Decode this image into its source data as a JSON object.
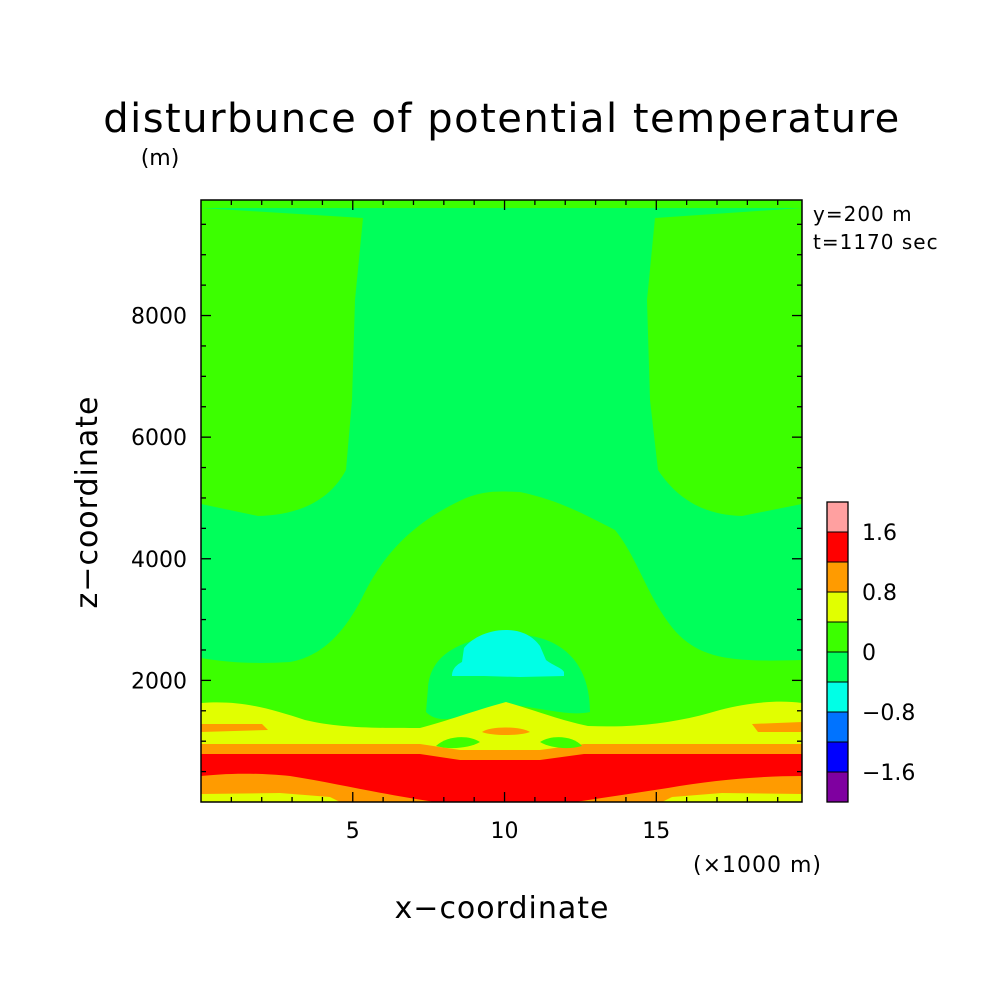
{
  "chart_data": {
    "type": "heatmap",
    "subtype": "filled-contour",
    "title": "disturbunce of potential temperature",
    "ylabel_unit": "(m)",
    "xlabel": "x−coordinate",
    "xlabel_unit": "(×1000 m)",
    "ylabel": "z−coordinate",
    "annotations": [
      "y=200 m",
      "t=1170 sec"
    ],
    "xlim": [
      0,
      19.8
    ],
    "ylim": [
      0,
      9900
    ],
    "xticks": [
      5,
      10,
      15
    ],
    "yticks": [
      2000,
      4000,
      6000,
      8000
    ],
    "grid": false,
    "legend_placement": "right",
    "colorbar": {
      "levels": [
        -2.0,
        -1.6,
        -1.2,
        -0.8,
        -0.4,
        0,
        0.4,
        0.8,
        1.2,
        1.6,
        2.0
      ],
      "colors": [
        "#7f00a0",
        "#0000ff",
        "#0073ff",
        "#00ffe6",
        "#00ff5a",
        "#3cff00",
        "#e1ff00",
        "#ff9b00",
        "#ff0000",
        "#ffa0a0"
      ],
      "labels": [
        "−1.6",
        "−0.8",
        "0",
        "0.8",
        "1.6"
      ],
      "label_values": [
        -1.6,
        -0.8,
        0,
        0.8,
        1.6
      ]
    },
    "background_level": "0 to 0.4",
    "regions": [
      {
        "name": "upper-left lobe",
        "value_range": "0 to 0.4",
        "x": [
          0,
          5.0
        ],
        "z": [
          4800,
          9700
        ]
      },
      {
        "name": "upper-right lobe",
        "value_range": "0 to 0.4",
        "x": [
          15.0,
          19.8
        ],
        "z": [
          4800,
          9700
        ]
      },
      {
        "name": "central dome",
        "value_range": "0 to 0.4",
        "x": [
          0,
          19.8
        ],
        "z": [
          1600,
          5100
        ]
      },
      {
        "name": "cold bubble",
        "value_range": "-0.4 to 0",
        "x": [
          7.6,
          12.8
        ],
        "z": [
          1400,
          2600
        ]
      },
      {
        "name": "cold core",
        "value_range": "-0.8 to -0.4",
        "x": [
          8.3,
          11.9
        ],
        "z": [
          2100,
          2900
        ]
      },
      {
        "name": "warm layer",
        "value_range": "0.4 to 0.8",
        "x": [
          0,
          19.8
        ],
        "z": [
          0,
          1700
        ]
      },
      {
        "name": "warm layer",
        "value_range": "0.8 to 1.2",
        "x": [
          0,
          19.8
        ],
        "z": [
          0,
          950
        ]
      },
      {
        "name": "warm core",
        "value_range": "1.2 to 1.6",
        "x": [
          0,
          19.8
        ],
        "z": [
          0,
          900
        ]
      }
    ]
  }
}
